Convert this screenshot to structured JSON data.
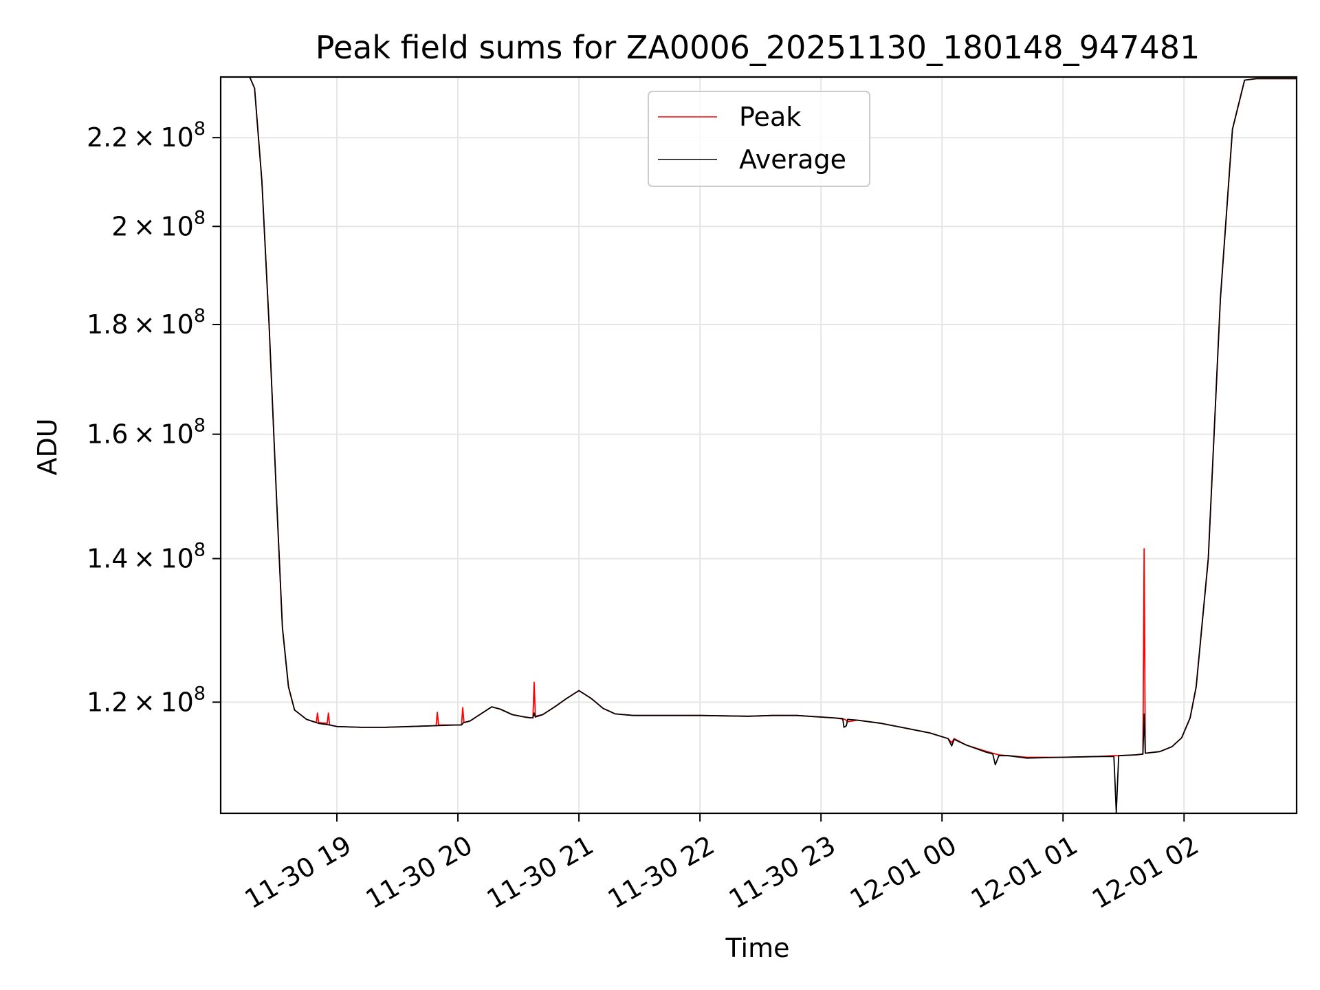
{
  "chart_data": {
    "type": "line",
    "title": "Peak field sums for ZA0006_20251130_180148_947481",
    "xlabel": "Time",
    "ylabel": "ADU",
    "y_scale": "log",
    "grid": true,
    "legend_position": "top-center",
    "xlim_hours": [
      -0.96,
      7.93
    ],
    "ylim": [
      106500000,
      234800000
    ],
    "xticks": [
      {
        "hours": 0,
        "label": "11-30 19"
      },
      {
        "hours": 1,
        "label": "11-30 20"
      },
      {
        "hours": 2,
        "label": "11-30 21"
      },
      {
        "hours": 3,
        "label": "11-30 22"
      },
      {
        "hours": 4,
        "label": "11-30 23"
      },
      {
        "hours": 5,
        "label": "12-01 00"
      },
      {
        "hours": 6,
        "label": "12-01 01"
      },
      {
        "hours": 7,
        "label": "12-01 02"
      }
    ],
    "yticks": [
      {
        "value": 120000000,
        "mantissa": "1.2"
      },
      {
        "value": 140000000,
        "mantissa": "1.4"
      },
      {
        "value": 160000000,
        "mantissa": "1.6"
      },
      {
        "value": 180000000,
        "mantissa": "1.8"
      },
      {
        "value": 200000000,
        "mantissa": "2"
      },
      {
        "value": 220000000,
        "mantissa": "2.2"
      }
    ],
    "ytick_base": "10",
    "ytick_exponent": "8",
    "series": [
      {
        "name": "Peak",
        "color": "#ff0000",
        "points": [
          [
            -0.86,
            234800000
          ],
          [
            -0.72,
            234800000
          ],
          [
            -0.68,
            232000000
          ],
          [
            -0.62,
            210000000
          ],
          [
            -0.56,
            180000000
          ],
          [
            -0.5,
            150000000
          ],
          [
            -0.45,
            130000000
          ],
          [
            -0.4,
            122000000
          ],
          [
            -0.35,
            119000000
          ],
          [
            -0.25,
            117800000
          ],
          [
            -0.17,
            117400000
          ],
          [
            -0.16,
            118600000
          ],
          [
            -0.15,
            117400000
          ],
          [
            -0.08,
            117300000
          ],
          [
            -0.07,
            118600000
          ],
          [
            -0.06,
            117100000
          ],
          [
            0.0,
            116900000
          ],
          [
            0.2,
            116800000
          ],
          [
            0.4,
            116800000
          ],
          [
            0.6,
            116900000
          ],
          [
            0.8,
            117000000
          ],
          [
            0.82,
            117000000
          ],
          [
            0.83,
            118700000
          ],
          [
            0.84,
            117100000
          ],
          [
            1.0,
            117100000
          ],
          [
            1.03,
            117100000
          ],
          [
            1.04,
            119300000
          ],
          [
            1.05,
            117400000
          ],
          [
            1.1,
            117600000
          ],
          [
            1.2,
            118600000
          ],
          [
            1.28,
            119400000
          ],
          [
            1.35,
            119100000
          ],
          [
            1.45,
            118400000
          ],
          [
            1.55,
            118100000
          ],
          [
            1.6,
            118000000
          ],
          [
            1.62,
            118000000
          ],
          [
            1.63,
            122600000
          ],
          [
            1.64,
            118200000
          ],
          [
            1.7,
            118400000
          ],
          [
            1.8,
            119400000
          ],
          [
            1.9,
            120500000
          ],
          [
            2.0,
            121500000
          ],
          [
            2.1,
            120500000
          ],
          [
            2.2,
            119200000
          ],
          [
            2.3,
            118500000
          ],
          [
            2.45,
            118300000
          ],
          [
            2.6,
            118300000
          ],
          [
            3.0,
            118300000
          ],
          [
            3.4,
            118200000
          ],
          [
            3.6,
            118300000
          ],
          [
            3.8,
            118300000
          ],
          [
            4.1,
            118000000
          ],
          [
            4.2,
            117800000
          ],
          [
            4.22,
            117500000
          ],
          [
            4.3,
            117700000
          ],
          [
            4.5,
            117300000
          ],
          [
            4.7,
            116700000
          ],
          [
            4.9,
            116100000
          ],
          [
            5.05,
            115400000
          ],
          [
            5.08,
            114900000
          ],
          [
            5.1,
            115400000
          ],
          [
            5.2,
            114600000
          ],
          [
            5.35,
            113900000
          ],
          [
            5.42,
            113600000
          ],
          [
            5.47,
            113400000
          ],
          [
            5.55,
            113300000
          ],
          [
            5.7,
            113100000
          ],
          [
            6.0,
            113100000
          ],
          [
            6.3,
            113200000
          ],
          [
            6.42,
            113300000
          ],
          [
            6.45,
            113300000
          ],
          [
            6.6,
            113400000
          ],
          [
            6.66,
            113500000
          ],
          [
            6.67,
            141500000
          ],
          [
            6.68,
            113600000
          ],
          [
            6.8,
            113800000
          ],
          [
            6.9,
            114400000
          ],
          [
            6.98,
            115500000
          ],
          [
            7.05,
            118000000
          ],
          [
            7.1,
            122000000
          ],
          [
            7.2,
            140000000
          ],
          [
            7.3,
            185000000
          ],
          [
            7.4,
            222000000
          ],
          [
            7.5,
            234000000
          ],
          [
            7.6,
            234400000
          ],
          [
            7.93,
            234400000
          ]
        ]
      },
      {
        "name": "Average",
        "color": "#000000",
        "points": [
          [
            -0.86,
            234800000
          ],
          [
            -0.72,
            234800000
          ],
          [
            -0.68,
            232000000
          ],
          [
            -0.62,
            210000000
          ],
          [
            -0.56,
            180000000
          ],
          [
            -0.5,
            150000000
          ],
          [
            -0.45,
            130000000
          ],
          [
            -0.4,
            122000000
          ],
          [
            -0.35,
            119000000
          ],
          [
            -0.25,
            117800000
          ],
          [
            -0.15,
            117300000
          ],
          [
            -0.06,
            117100000
          ],
          [
            0.0,
            116900000
          ],
          [
            0.2,
            116800000
          ],
          [
            0.4,
            116800000
          ],
          [
            0.6,
            116900000
          ],
          [
            0.8,
            117000000
          ],
          [
            1.0,
            117100000
          ],
          [
            1.03,
            117100000
          ],
          [
            1.04,
            117300000
          ],
          [
            1.05,
            117400000
          ],
          [
            1.1,
            117600000
          ],
          [
            1.2,
            118600000
          ],
          [
            1.28,
            119400000
          ],
          [
            1.35,
            119100000
          ],
          [
            1.45,
            118400000
          ],
          [
            1.55,
            118100000
          ],
          [
            1.6,
            118000000
          ],
          [
            1.62,
            118000000
          ],
          [
            1.63,
            118600000
          ],
          [
            1.64,
            118100000
          ],
          [
            1.7,
            118400000
          ],
          [
            1.8,
            119400000
          ],
          [
            1.9,
            120500000
          ],
          [
            2.0,
            121500000
          ],
          [
            2.1,
            120500000
          ],
          [
            2.2,
            119200000
          ],
          [
            2.3,
            118500000
          ],
          [
            2.45,
            118300000
          ],
          [
            2.6,
            118300000
          ],
          [
            3.0,
            118300000
          ],
          [
            3.4,
            118200000
          ],
          [
            3.6,
            118300000
          ],
          [
            3.8,
            118300000
          ],
          [
            4.1,
            118000000
          ],
          [
            4.18,
            117900000
          ],
          [
            4.19,
            116800000
          ],
          [
            4.21,
            117000000
          ],
          [
            4.22,
            117800000
          ],
          [
            4.3,
            117700000
          ],
          [
            4.5,
            117300000
          ],
          [
            4.7,
            116700000
          ],
          [
            4.9,
            116100000
          ],
          [
            5.05,
            115400000
          ],
          [
            5.08,
            114500000
          ],
          [
            5.1,
            115300000
          ],
          [
            5.2,
            114600000
          ],
          [
            5.35,
            113800000
          ],
          [
            5.42,
            113500000
          ],
          [
            5.44,
            112200000
          ],
          [
            5.47,
            113300000
          ],
          [
            5.55,
            113300000
          ],
          [
            5.7,
            113000000
          ],
          [
            6.0,
            113100000
          ],
          [
            6.3,
            113200000
          ],
          [
            6.42,
            113200000
          ],
          [
            6.44,
            106600000
          ],
          [
            6.46,
            113300000
          ],
          [
            6.6,
            113400000
          ],
          [
            6.66,
            113500000
          ],
          [
            6.67,
            118500000
          ],
          [
            6.68,
            113600000
          ],
          [
            6.8,
            113800000
          ],
          [
            6.9,
            114400000
          ],
          [
            6.98,
            115500000
          ],
          [
            7.05,
            118000000
          ],
          [
            7.1,
            122000000
          ],
          [
            7.2,
            140000000
          ],
          [
            7.3,
            185000000
          ],
          [
            7.4,
            222000000
          ],
          [
            7.5,
            234000000
          ],
          [
            7.6,
            234400000
          ],
          [
            7.93,
            234400000
          ]
        ]
      }
    ]
  }
}
